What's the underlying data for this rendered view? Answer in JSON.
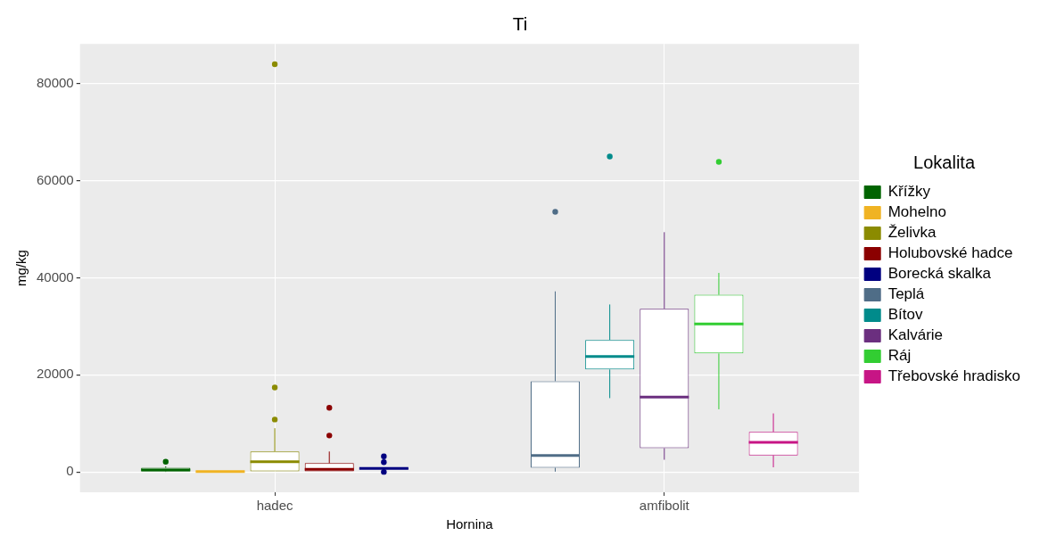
{
  "chart_data": {
    "type": "box",
    "title": "Ti",
    "xlabel": "Hornina",
    "ylabel": "mg/kg",
    "legend_title": "Lokalita",
    "categories": [
      "hadec",
      "amfibolit"
    ],
    "ylim": [
      -4200,
      88200
    ],
    "yticks": [
      0,
      20000,
      40000,
      60000,
      80000
    ],
    "grid": true,
    "legend": "right",
    "series": [
      {
        "name": "Křížky",
        "color": "#006400",
        "boxes": [
          {
            "low": 0,
            "q1": 100,
            "median": 400,
            "q3": 850,
            "high": 1150,
            "outliers": [
              2100
            ]
          },
          null
        ]
      },
      {
        "name": "Mohelno",
        "color": "#f0b323",
        "boxes": [
          {
            "low": 0,
            "q1": 20,
            "median": 60,
            "q3": 120,
            "high": 200
          },
          null
        ]
      },
      {
        "name": "Želivka",
        "color": "#8b8b00",
        "boxes": [
          {
            "low": 0,
            "q1": 0,
            "median": 2100,
            "q3": 4200,
            "high": 9000,
            "outliers": [
              10800,
              17400,
              84000
            ]
          },
          null
        ]
      },
      {
        "name": "Holubovské hadce",
        "color": "#8b0000",
        "boxes": [
          {
            "low": 0,
            "q1": 0,
            "median": 550,
            "q3": 1800,
            "high": 4200,
            "outliers": [
              7500,
              13200
            ]
          },
          null
        ]
      },
      {
        "name": "Borecká skalka",
        "color": "#000080",
        "boxes": [
          {
            "low": 500,
            "q1": 600,
            "median": 700,
            "q3": 800,
            "high": 900,
            "outliers": [
              0,
              2000,
              3200
            ]
          },
          null
        ]
      },
      {
        "name": "Teplá",
        "color": "#4f6d87",
        "boxes": [
          null,
          {
            "low": 50,
            "q1": 850,
            "median": 3400,
            "q3": 18700,
            "high": 37200,
            "outliers": [
              53600
            ]
          }
        ]
      },
      {
        "name": "Bítov",
        "color": "#008b8b",
        "boxes": [
          null,
          {
            "low": 15200,
            "q1": 21100,
            "median": 23800,
            "q3": 27200,
            "high": 34500,
            "outliers": [
              65000
            ]
          }
        ]
      },
      {
        "name": "Kalvárie",
        "color": "#6b2f7f",
        "boxes": [
          null,
          {
            "low": 2500,
            "q1": 4900,
            "median": 15400,
            "q3": 33600,
            "high": 49400
          }
        ]
      },
      {
        "name": "Ráj",
        "color": "#32cd32",
        "boxes": [
          null,
          {
            "low": 12900,
            "q1": 24400,
            "median": 30500,
            "q3": 36500,
            "high": 41000,
            "outliers": [
              63900
            ]
          }
        ]
      },
      {
        "name": "Třebovské hradisko",
        "color": "#c71585",
        "boxes": [
          null,
          {
            "low": 950,
            "q1": 3400,
            "median": 6100,
            "q3": 8250,
            "high": 12050
          }
        ]
      }
    ]
  }
}
